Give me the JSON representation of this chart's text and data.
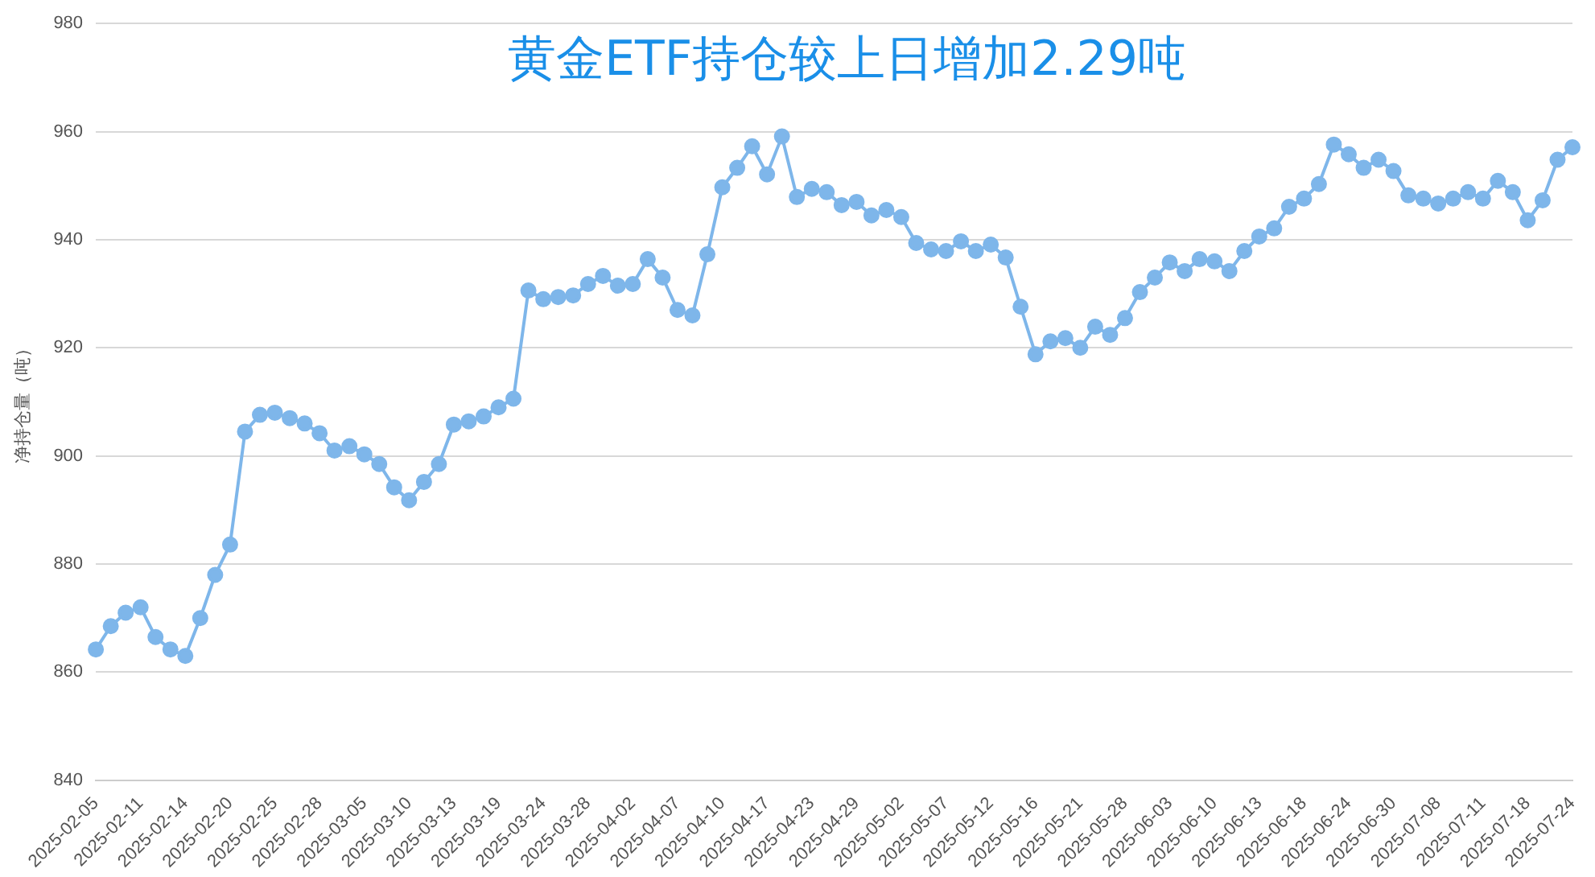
{
  "chart_data": {
    "type": "line",
    "title": "黄金ETF持仓较上日增加2.29吨",
    "ylabel": "净持仓量（吨）",
    "categories": [
      "2025-02-05",
      null,
      null,
      "2025-02-11",
      null,
      null,
      "2025-02-14",
      null,
      null,
      "2025-02-20",
      null,
      null,
      "2025-02-25",
      null,
      null,
      "2025-02-28",
      null,
      null,
      "2025-03-05",
      null,
      null,
      "2025-03-10",
      null,
      null,
      "2025-03-13",
      null,
      null,
      "2025-03-19",
      null,
      null,
      "2025-03-24",
      null,
      null,
      "2025-03-28",
      null,
      null,
      "2025-04-02",
      null,
      null,
      "2025-04-07",
      null,
      null,
      "2025-04-10",
      null,
      null,
      "2025-04-17",
      null,
      null,
      "2025-04-23",
      null,
      null,
      "2025-04-29",
      null,
      null,
      "2025-05-02",
      null,
      null,
      "2025-05-07",
      null,
      null,
      "2025-05-12",
      null,
      null,
      "2025-05-16",
      null,
      null,
      "2025-05-21",
      null,
      null,
      "2025-05-28",
      null,
      null,
      "2025-06-03",
      null,
      null,
      "2025-06-10",
      null,
      null,
      "2025-06-13",
      null,
      null,
      "2025-06-18",
      null,
      null,
      "2025-06-24",
      null,
      null,
      "2025-06-30",
      null,
      null,
      "2025-07-08",
      null,
      null,
      "2025-07-11",
      null,
      null,
      "2025-07-18",
      null,
      null,
      "2025-07-24"
    ],
    "series": [
      {
        "color": "#7eb6ea",
        "values": [
          864.2,
          868.5,
          871,
          872,
          866.5,
          864.2,
          863,
          870,
          878,
          883.6,
          904.5,
          907.6,
          908,
          907,
          906,
          904.2,
          901,
          901.8,
          900.3,
          898.5,
          894.2,
          891.8,
          895.2,
          898.5,
          905.8,
          906.4,
          907.3,
          909,
          910.6,
          930.6,
          929,
          929.4,
          929.7,
          931.8,
          933.3,
          931.5,
          931.8,
          936.4,
          933,
          927,
          926,
          937.3,
          949.7,
          953.3,
          957.3,
          952.1,
          959.1,
          947.9,
          949.4,
          948.8,
          946.4,
          947,
          944.5,
          945.5,
          944.2,
          939.4,
          938.2,
          937.9,
          939.7,
          937.9,
          939.1,
          936.7,
          927.6,
          918.8,
          921.2,
          921.8,
          920,
          923.9,
          922.4,
          925.5,
          930.3,
          933,
          935.8,
          934.2,
          936.4,
          936,
          934.2,
          937.9,
          940.6,
          942.1,
          946.1,
          947.6,
          950.3,
          957.6,
          955.8,
          953.3,
          954.8,
          952.7,
          948.2,
          947.6,
          946.7,
          947.6,
          948.8,
          947.6,
          950.9,
          948.8,
          943.6,
          947.3,
          954.8,
          957.1
        ]
      }
    ],
    "ylim": [
      840,
      980
    ],
    "yticks": [
      840,
      860,
      880,
      900,
      920,
      940,
      960,
      980
    ],
    "grid": "y",
    "marker": "circle",
    "line_style": "solid"
  }
}
